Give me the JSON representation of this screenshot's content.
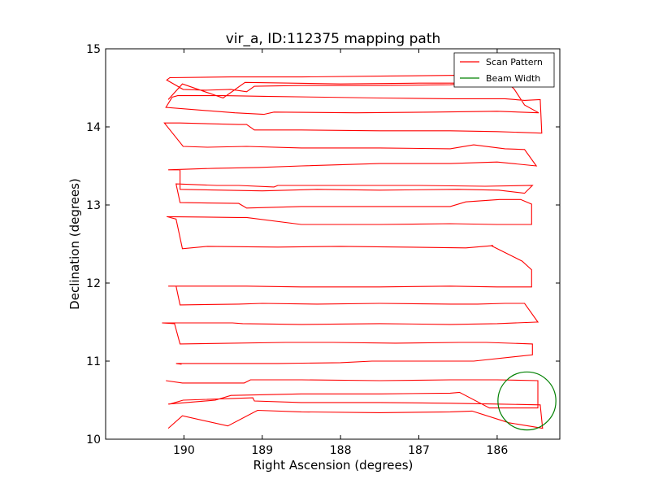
{
  "chart_data": {
    "type": "line",
    "title": "vir_a, ID:112375 mapping path",
    "xlabel": "Right Ascension (degrees)",
    "ylabel": "Declination (degrees)",
    "xlim": [
      191.0,
      185.2
    ],
    "ylim": [
      10,
      15
    ],
    "x_inverted": true,
    "xticks": [
      190,
      189,
      188,
      187,
      186
    ],
    "yticks": [
      10,
      11,
      12,
      13,
      14,
      15
    ],
    "xtick_labels": [
      "190",
      "189",
      "188",
      "187",
      "186"
    ],
    "ytick_labels": [
      "10",
      "11",
      "12",
      "13",
      "14",
      "15"
    ],
    "grid": false,
    "legend_position": "top-right",
    "colors": {
      "scan": "#ff0000",
      "beam": "#008000"
    },
    "legend": [
      {
        "label": "Scan Pattern",
        "color": "#ff0000"
      },
      {
        "label": "Beam Width",
        "color": "#008000"
      }
    ],
    "series": [
      {
        "name": "Scan Pattern",
        "type": "line",
        "x": [
          190.2,
          190.02,
          189.5,
          189.22,
          188.0,
          187.0,
          186.5,
          186.1,
          185.6,
          185.45,
          185.45,
          186.0,
          186.6,
          187.5,
          188.5,
          189.1,
          189.2,
          189.4,
          189.72,
          190.01,
          190.22,
          190.18,
          189.4,
          188.5,
          187.5,
          186.5,
          185.95,
          185.78,
          185.65,
          185.47,
          185.47,
          186.0,
          186.8,
          187.8,
          188.85,
          188.98,
          189.35,
          190.23,
          190.15,
          190.08,
          189.5,
          188.9,
          188.2,
          187.5,
          186.6,
          186.2,
          185.9,
          185.65,
          185.45,
          185.43,
          186.0,
          186.6,
          187.5,
          188.5,
          189.1,
          189.2,
          189.3,
          190.05,
          190.25,
          190.01,
          189.7,
          189.2,
          188.5,
          187.5,
          186.6,
          186.3,
          185.9,
          185.65,
          185.5,
          185.5,
          186.0,
          186.6,
          187.5,
          188.5,
          189.05,
          189.6,
          190.2,
          190.05,
          190.05,
          189.0,
          188.3,
          187.5,
          186.5,
          185.98,
          185.65,
          185.55,
          185.55,
          186.15,
          187.0,
          188.0,
          188.8,
          188.85,
          189.3,
          189.58,
          190.1,
          190.05,
          189.3,
          189.2,
          188.5,
          187.5,
          186.6,
          186.4,
          185.97,
          185.7,
          185.56,
          185.56,
          186.0,
          186.6,
          187.5,
          188.5,
          189.2,
          189.32,
          190.22,
          190.1,
          190.02,
          189.7,
          188.8,
          188.0,
          187.2,
          186.4,
          186.05,
          186.08,
          185.68,
          185.56,
          185.56,
          186.0,
          186.6,
          187.5,
          188.5,
          189.2,
          190.2,
          190.1,
          190.05,
          189.3,
          189.0,
          188.3,
          187.5,
          186.6,
          186.25,
          185.9,
          185.65,
          185.48,
          185.5,
          186.0,
          186.6,
          187.5,
          188.5,
          189.25,
          189.38,
          190.28,
          190.12,
          190.05,
          188.7,
          188.1,
          187.3,
          186.48,
          186.14,
          185.55,
          185.55,
          186.3,
          186.9,
          187.6,
          188.0,
          188.8,
          189.12,
          190.1,
          190.03
        ],
        "y": [
          14.35,
          14.55,
          14.37,
          14.57,
          14.55,
          14.56,
          14.56,
          14.56,
          14.57,
          14.56,
          14.56,
          14.58,
          14.54,
          14.53,
          14.53,
          14.52,
          14.45,
          14.48,
          14.47,
          14.48,
          14.6,
          14.63,
          14.64,
          14.64,
          14.65,
          14.66,
          14.65,
          14.48,
          14.28,
          14.18,
          14.18,
          14.2,
          14.19,
          14.18,
          14.19,
          14.16,
          14.18,
          14.25,
          14.38,
          14.4,
          14.4,
          14.39,
          14.38,
          14.37,
          14.36,
          14.36,
          14.36,
          14.34,
          14.35,
          13.92,
          13.94,
          13.95,
          13.95,
          13.96,
          13.96,
          14.03,
          14.03,
          14.05,
          14.05,
          13.75,
          13.74,
          13.75,
          13.73,
          13.73,
          13.72,
          13.77,
          13.72,
          13.71,
          13.5,
          13.5,
          13.55,
          13.53,
          13.53,
          13.5,
          13.48,
          13.47,
          13.45,
          13.45,
          13.2,
          13.18,
          13.2,
          13.19,
          13.2,
          13.19,
          13.15,
          13.25,
          13.25,
          13.24,
          13.25,
          13.25,
          13.25,
          13.23,
          13.25,
          13.25,
          13.27,
          13.03,
          13.02,
          12.96,
          12.98,
          12.98,
          12.98,
          13.04,
          13.07,
          13.07,
          13.01,
          12.75,
          12.75,
          12.76,
          12.75,
          12.75,
          12.84,
          12.84,
          12.85,
          12.82,
          12.44,
          12.47,
          12.46,
          12.47,
          12.46,
          12.45,
          12.48,
          12.48,
          12.28,
          12.17,
          11.95,
          11.95,
          11.96,
          11.95,
          11.95,
          11.96,
          11.96,
          11.96,
          11.72,
          11.73,
          11.74,
          11.73,
          11.74,
          11.73,
          11.73,
          11.74,
          11.74,
          11.5,
          11.5,
          11.48,
          11.47,
          11.48,
          11.47,
          11.48,
          11.49,
          11.49,
          11.48,
          11.22,
          11.24,
          11.24,
          11.23,
          11.24,
          11.24,
          11.22,
          11.08,
          11.0,
          11.0,
          11.0,
          10.98,
          10.97,
          10.97,
          10.97,
          10.96
        ]
      },
      {
        "name": "Scan Pattern",
        "type": "line",
        "x": [
          190.2,
          190.02,
          189.44,
          189.06,
          188.5,
          187.5,
          186.6,
          186.32,
          185.85,
          185.42,
          185.45,
          186.0,
          186.6,
          187.5,
          188.5,
          189.1,
          189.12,
          190.01,
          190.18,
          190.2,
          189.6,
          189.4,
          188.5,
          187.5,
          186.6,
          186.48,
          186.1,
          185.48,
          185.48,
          186.0,
          186.6,
          187.5,
          188.5,
          189.15,
          189.23,
          190.02,
          190.23
        ],
        "y": [
          10.14,
          10.3,
          10.17,
          10.37,
          10.35,
          10.34,
          10.35,
          10.36,
          10.21,
          10.14,
          10.44,
          10.45,
          10.46,
          10.47,
          10.47,
          10.49,
          10.53,
          10.5,
          10.45,
          10.45,
          10.5,
          10.56,
          10.58,
          10.58,
          10.59,
          10.6,
          10.4,
          10.4,
          10.75,
          10.76,
          10.76,
          10.75,
          10.76,
          10.76,
          10.72,
          10.72,
          10.75
        ]
      },
      {
        "name": "Beam Width",
        "type": "circle",
        "center": [
          185.62,
          10.49
        ],
        "radius_deg": 0.37
      }
    ]
  }
}
